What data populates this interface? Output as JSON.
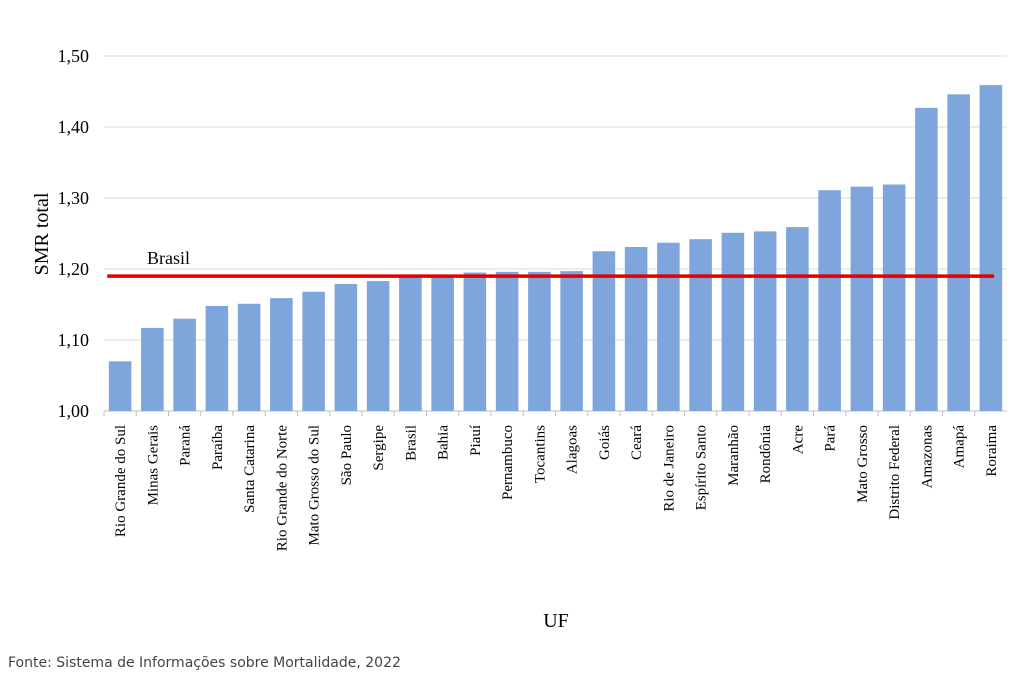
{
  "chart_data": {
    "type": "bar",
    "ylabel": "SMR total",
    "xlabel": "UF",
    "ylim": [
      1.0,
      1.5
    ],
    "yticks": [
      "1,00",
      "1,10",
      "1,20",
      "1,30",
      "1,40",
      "1,50"
    ],
    "grid": true,
    "categories": [
      "Rio Grande do Sul",
      "Minas Gerais",
      "Paraná",
      "Paraíba",
      "Santa Catarina",
      "Rio Grande do Norte",
      "Mato Grosso do Sul",
      "São Paulo",
      "Sergipe",
      "Brasil",
      "Bahia",
      "Piauí",
      "Pernambuco",
      "Tocantins",
      "Alagoas",
      "Goiás",
      "Ceará",
      "Rio de Janeiro",
      "Espírito Santo",
      "Maranhão",
      "Rondônia",
      "Acre",
      "Pará",
      "Mato Grosso",
      "Distrito Federal",
      "Amazonas",
      "Amapá",
      "Roraima"
    ],
    "values": [
      1.07,
      1.117,
      1.13,
      1.148,
      1.151,
      1.159,
      1.168,
      1.179,
      1.183,
      1.189,
      1.189,
      1.195,
      1.196,
      1.196,
      1.197,
      1.225,
      1.231,
      1.237,
      1.242,
      1.251,
      1.253,
      1.259,
      1.311,
      1.316,
      1.319,
      1.427,
      1.446,
      1.459
    ],
    "reference_line": {
      "label": "Brasil",
      "value": 1.19,
      "color": "#e00000"
    },
    "bar_color": "#7ea6dc"
  },
  "source": "Fonte: Sistema de Informações sobre Mortalidade, 2022"
}
